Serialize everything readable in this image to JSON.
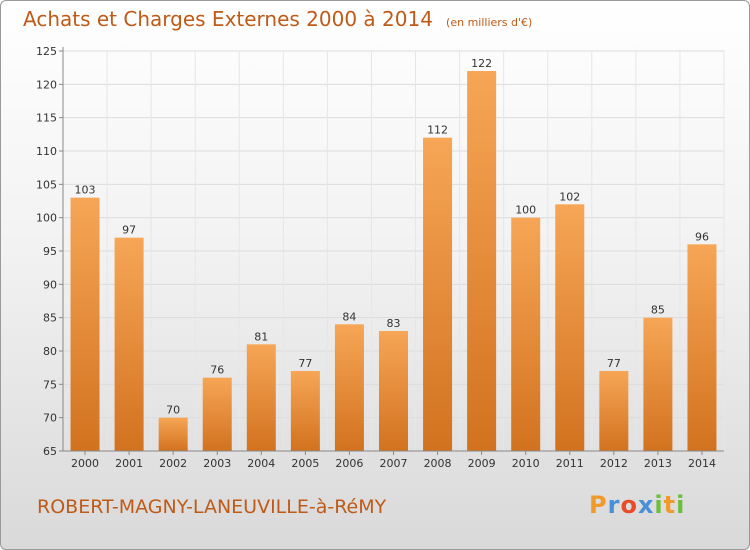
{
  "chart_data": {
    "type": "bar",
    "title": "Achats et Charges Externes 2000 à 2014",
    "units_label": "(en milliers d'€)",
    "categories": [
      "2000",
      "2001",
      "2002",
      "2003",
      "2004",
      "2005",
      "2006",
      "2007",
      "2008",
      "2009",
      "2010",
      "2011",
      "2012",
      "2013",
      "2014"
    ],
    "values": [
      103,
      97,
      70,
      76,
      81,
      77,
      84,
      83,
      112,
      122,
      100,
      102,
      77,
      85,
      96
    ],
    "ylim": [
      65,
      125
    ],
    "yticks": [
      "65",
      "70",
      "75",
      "80",
      "85",
      "90",
      "95",
      "100",
      "105",
      "110",
      "115",
      "120",
      "125"
    ],
    "grid": true,
    "bar_color": "#f19a44",
    "bar_color_dark": "#d2721f"
  },
  "footer": {
    "commune": "ROBERT-MAGNY-LANEUVILLE-à-RéMY",
    "logo": [
      "P",
      "r",
      "o",
      "x",
      "i",
      "t",
      "i"
    ],
    "logo_colors": [
      "#f09a2a",
      "#4a90d9",
      "#e84a2a",
      "#4a90d9",
      "#6cbf3a",
      "#f09a2a",
      "#6cbf3a"
    ]
  }
}
